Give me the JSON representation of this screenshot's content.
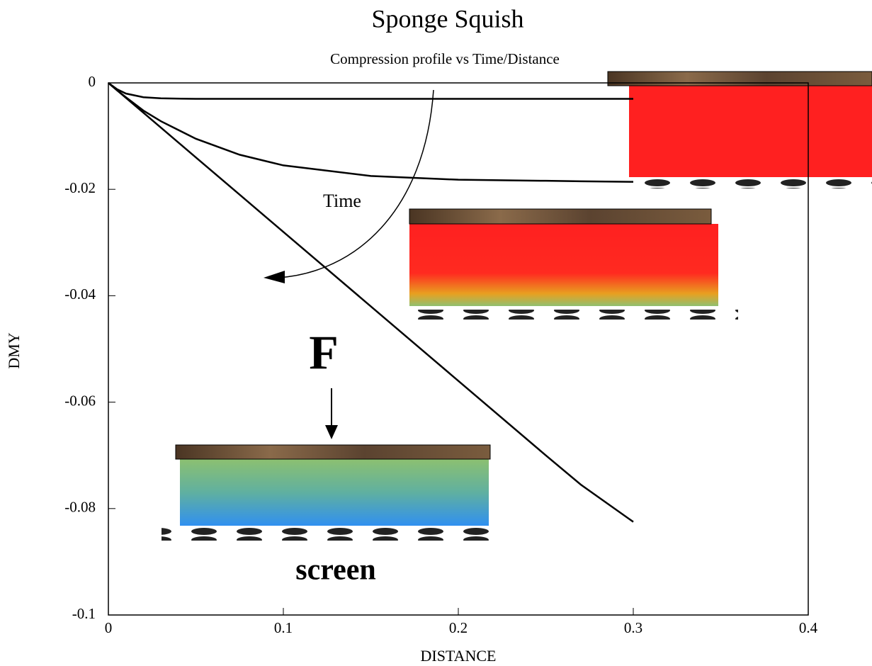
{
  "chart_data": {
    "type": "line",
    "title": "Sponge Squish",
    "subtitle": "Compression profile vs Time/Distance",
    "x_label": "DISTANCE",
    "y_label": "DMY",
    "x": [
      0,
      0.005,
      0.01,
      0.02,
      0.03,
      0.05,
      0.075,
      0.1,
      0.15,
      0.2,
      0.25,
      0.27,
      0.3
    ],
    "series": [
      {
        "color": "#000000",
        "values": [
          0,
          -0.0012,
          -0.002,
          -0.0027,
          -0.0029,
          -0.003,
          -0.003,
          -0.003,
          -0.003,
          -0.003,
          -0.003,
          -0.003,
          -0.003
        ]
      },
      {
        "color": "#000000",
        "values": [
          0,
          -0.0014,
          -0.0027,
          -0.0052,
          -0.0072,
          -0.0105,
          -0.0135,
          -0.0155,
          -0.0175,
          -0.0182,
          -0.0184,
          -0.0185,
          -0.0186
        ]
      },
      {
        "color": "#000000",
        "values": [
          0,
          -0.0014,
          -0.0028,
          -0.0056,
          -0.0084,
          -0.014,
          -0.021,
          -0.028,
          -0.042,
          -0.056,
          -0.07,
          -0.0755,
          -0.0825
        ]
      }
    ],
    "xlim": [
      0,
      0.4
    ],
    "xticks": [
      0,
      0.1,
      0.2,
      0.3,
      0.4
    ],
    "ylim": [
      -0.1,
      0
    ],
    "yticks": [
      0,
      -0.02,
      -0.04,
      -0.06,
      -0.08,
      -0.1
    ],
    "annotations": [
      "Time",
      "F",
      "screen"
    ]
  }
}
